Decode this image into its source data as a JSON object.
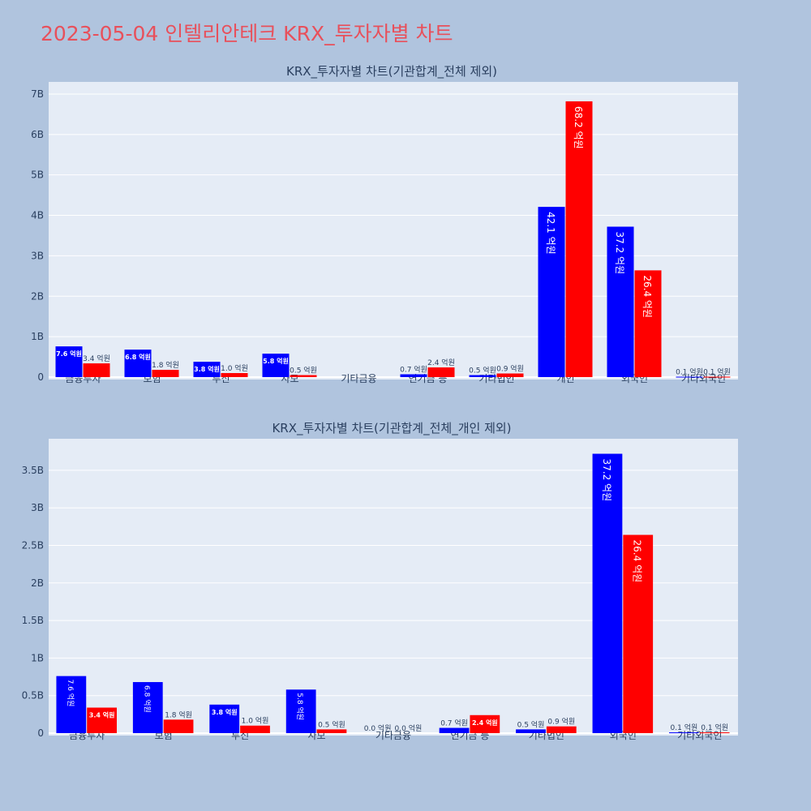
{
  "page": {
    "title": "2023-05-04 인텔리안테크 KRX_투자자별 차트"
  },
  "colors": {
    "buy": "#0000ff",
    "sell": "#ff0000",
    "plot_bg": "#e5ecf6",
    "page_bg": "#b0c4de",
    "title": "#e8505b"
  },
  "chart_data": [
    {
      "type": "bar",
      "title": "KRX_투자자별 차트(기관합계_전체 제외)",
      "categories": [
        "금융투자",
        "보험",
        "투신",
        "사모",
        "기타금융",
        "연기금 등",
        "기타법인",
        "개인",
        "외국인",
        "기타외국인"
      ],
      "y_ticks": [
        "0",
        "1B",
        "2B",
        "3B",
        "4B",
        "5B",
        "6B",
        "7B"
      ],
      "ylim": [
        0,
        7.3
      ],
      "series": [
        {
          "values": [
            0.76,
            0.68,
            0.38,
            0.58,
            0.0,
            0.07,
            0.05,
            4.21,
            3.72,
            0.01
          ],
          "labels": [
            "7.6 억원",
            "6.8 억원",
            "3.8 억원",
            "5.8 억원",
            "",
            "0.7 억원",
            "0.5 억원",
            "42.1 억원",
            "37.2 억원",
            "0.1 억원"
          ]
        },
        {
          "values": [
            0.34,
            0.18,
            0.1,
            0.05,
            0.0,
            0.24,
            0.09,
            6.82,
            2.64,
            0.01
          ],
          "labels": [
            "3.4 억원",
            "1.8 억원",
            "1.0 억원",
            "0.5 억원",
            "",
            "2.4 억원",
            "0.9 억원",
            "68.2 억원",
            "26.4 억원",
            "0.1 억원"
          ]
        }
      ]
    },
    {
      "type": "bar",
      "title": "KRX_투자자별 차트(기관합계_전체_개인 제외)",
      "categories": [
        "금융투자",
        "보험",
        "투신",
        "사모",
        "기타금융",
        "연기금 등",
        "기타법인",
        "외국인",
        "기타외국인"
      ],
      "y_ticks": [
        "0",
        "0.5B",
        "1B",
        "1.5B",
        "2B",
        "2.5B",
        "3B",
        "3.5B"
      ],
      "ylim": [
        0,
        3.92
      ],
      "series": [
        {
          "values": [
            0.76,
            0.68,
            0.38,
            0.58,
            0.0,
            0.07,
            0.05,
            3.72,
            0.01
          ],
          "labels": [
            "7.6 억원",
            "6.8 억원",
            "3.8 억원",
            "5.8 억원",
            "0.0 억원",
            "0.7 억원",
            "0.5 억원",
            "37.2 억원",
            "0.1 억원"
          ]
        },
        {
          "values": [
            0.34,
            0.18,
            0.1,
            0.05,
            0.0,
            0.24,
            0.09,
            2.64,
            0.01
          ],
          "labels": [
            "3.4 억원",
            "1.8 억원",
            "1.0 억원",
            "0.5 억원",
            "0.0 억원",
            "2.4 억원",
            "0.9 억원",
            "26.4 억원",
            "0.1 억원"
          ]
        }
      ]
    }
  ]
}
